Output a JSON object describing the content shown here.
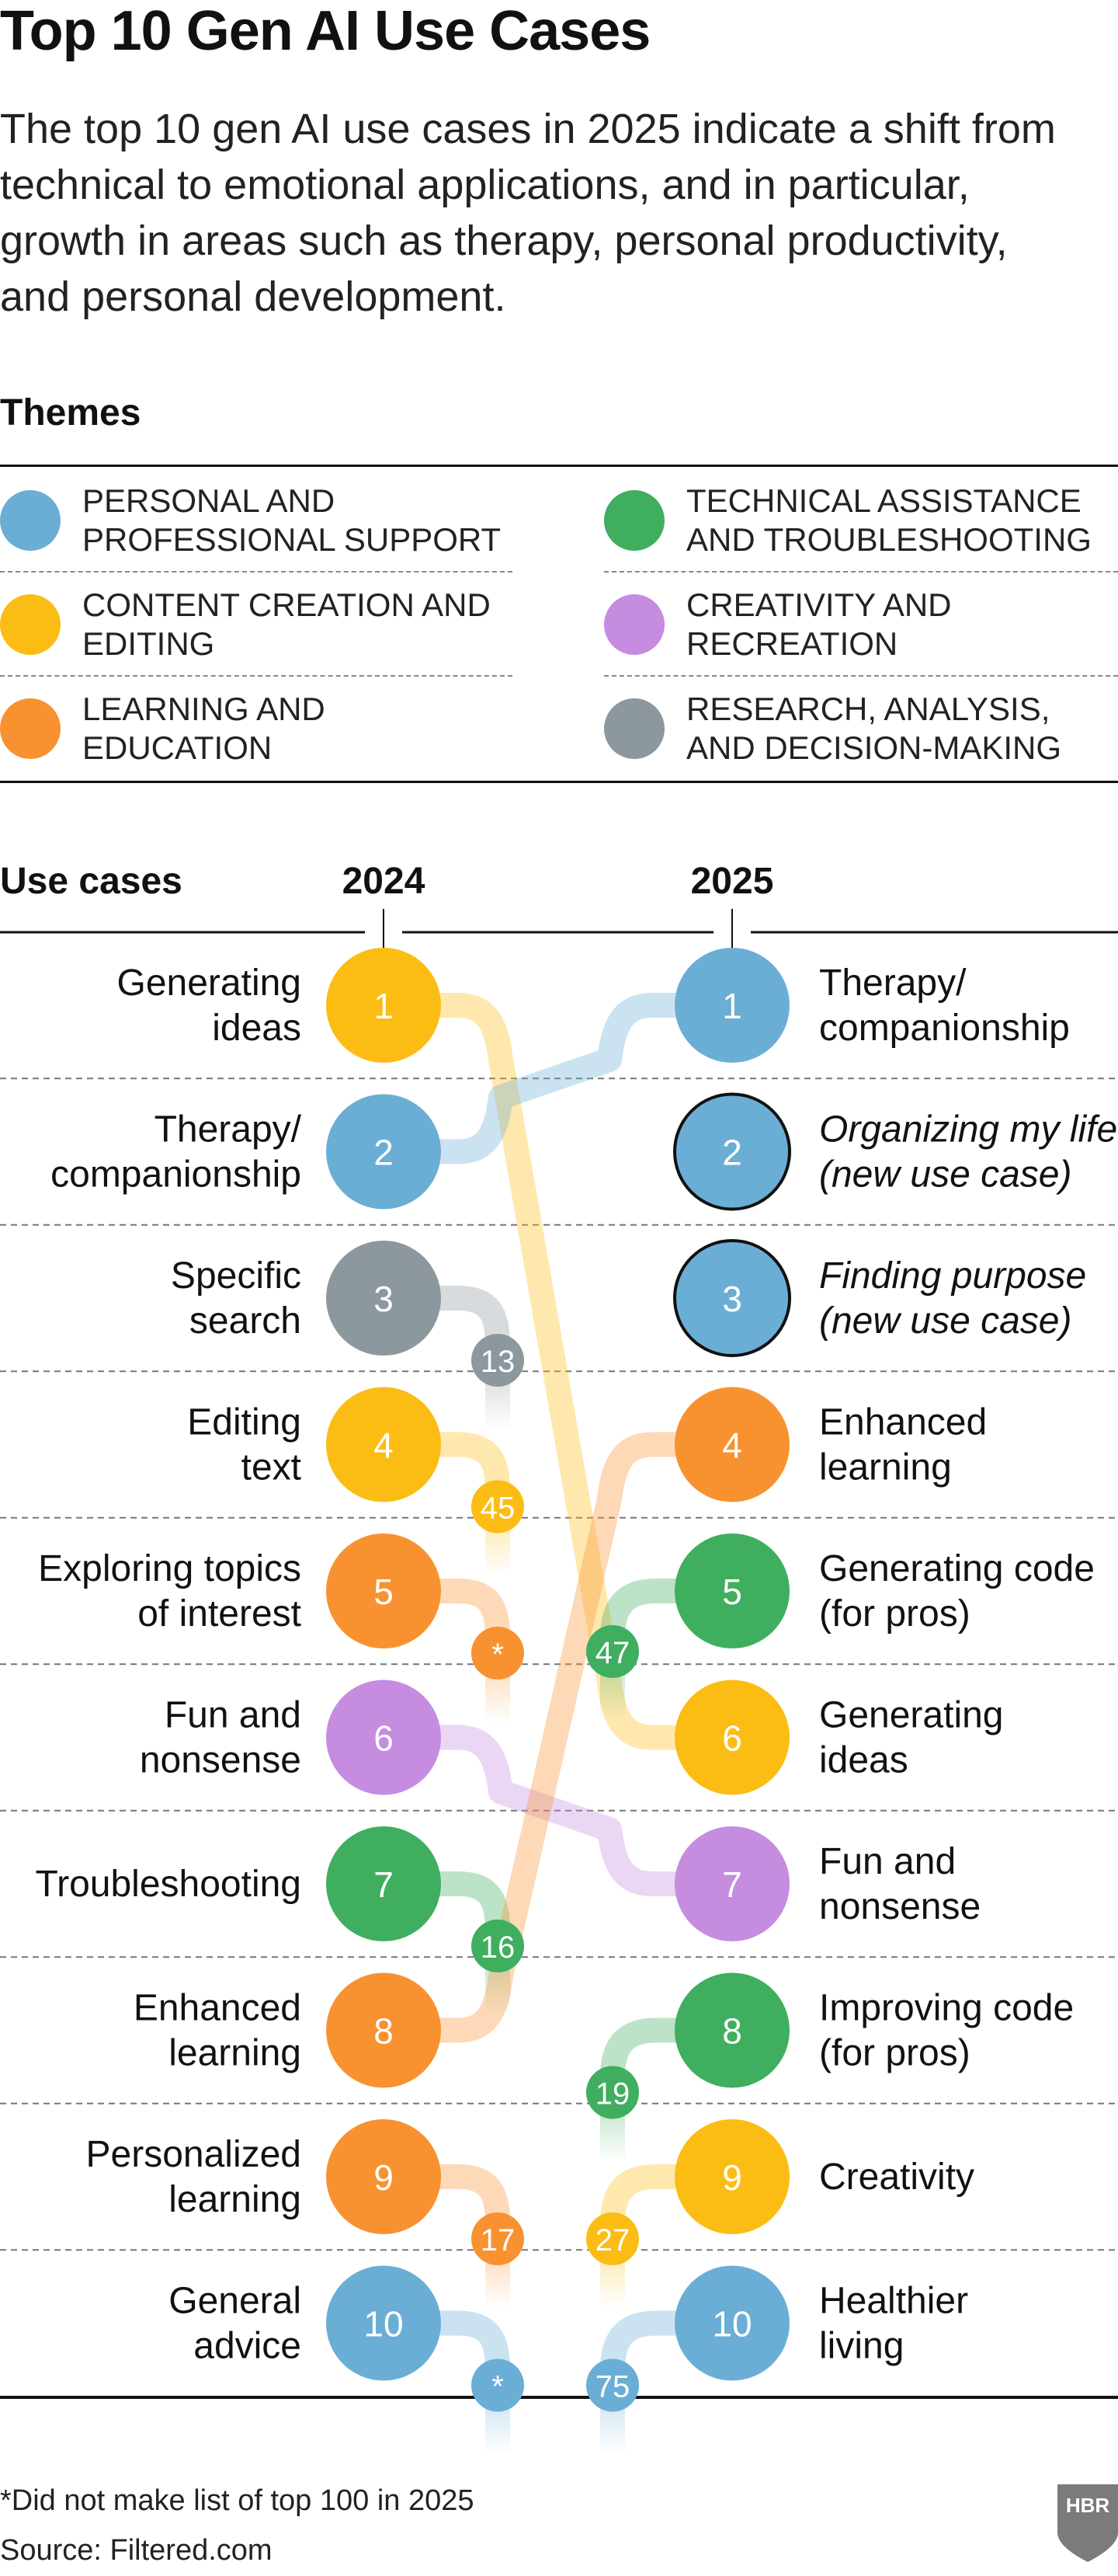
{
  "title": "Top 10 Gen AI Use Cases",
  "subtitle": "The top 10 gen AI use cases in 2025 indicate a shift from technical to emotional applications, and in particular, growth in areas such as therapy, personal productivity, and personal development.",
  "themes_heading": "Themes",
  "themes": [
    {
      "key": "personal",
      "label": "Personal and professional support",
      "color": "#6aaed6"
    },
    {
      "key": "technical",
      "label": "Technical assistance and troubleshooting",
      "color": "#3fae5f"
    },
    {
      "key": "content",
      "label": "Content creation and editing",
      "color": "#fbbd14"
    },
    {
      "key": "creativity",
      "label": "Creativity and recreation",
      "color": "#c58ce0"
    },
    {
      "key": "learning",
      "label": "Learning and education",
      "color": "#f89230"
    },
    {
      "key": "research",
      "label": "Research, analysis, and decision-making",
      "color": "#8c979e"
    }
  ],
  "chart_data": {
    "type": "slope",
    "row_header": "Use cases",
    "year_left": "2024",
    "year_right": "2025",
    "y2024": [
      {
        "rank": "1",
        "lines": [
          "Generating",
          "ideas"
        ],
        "theme": "content",
        "rank_2025": "6"
      },
      {
        "rank": "2",
        "lines": [
          "Therapy/",
          "companionship"
        ],
        "theme": "personal",
        "rank_2025": "1"
      },
      {
        "rank": "3",
        "lines": [
          "Specific",
          "search"
        ],
        "theme": "research",
        "rank_2025": "13"
      },
      {
        "rank": "4",
        "lines": [
          "Editing",
          "text"
        ],
        "theme": "content",
        "rank_2025": "45"
      },
      {
        "rank": "5",
        "lines": [
          "Exploring topics",
          "of interest"
        ],
        "theme": "learning",
        "rank_2025": "*"
      },
      {
        "rank": "6",
        "lines": [
          "Fun and",
          "nonsense"
        ],
        "theme": "creativity",
        "rank_2025": "7"
      },
      {
        "rank": "7",
        "lines": [
          "Troubleshooting"
        ],
        "theme": "technical",
        "rank_2025": "16"
      },
      {
        "rank": "8",
        "lines": [
          "Enhanced",
          "learning"
        ],
        "theme": "learning",
        "rank_2025": "4"
      },
      {
        "rank": "9",
        "lines": [
          "Personalized",
          "learning"
        ],
        "theme": "learning",
        "rank_2025": "17"
      },
      {
        "rank": "10",
        "lines": [
          "General",
          "advice"
        ],
        "theme": "personal",
        "rank_2025": "*"
      }
    ],
    "y2025": [
      {
        "rank": "1",
        "lines": [
          "Therapy/",
          "companionship"
        ],
        "theme": "personal",
        "rank_2024": "2"
      },
      {
        "rank": "2",
        "lines": [
          "Organizing my life",
          "(new use case)"
        ],
        "theme": "personal",
        "new": true
      },
      {
        "rank": "3",
        "lines": [
          "Finding purpose",
          "(new use case)"
        ],
        "theme": "personal",
        "new": true
      },
      {
        "rank": "4",
        "lines": [
          "Enhanced",
          "learning"
        ],
        "theme": "learning",
        "rank_2024": "8"
      },
      {
        "rank": "5",
        "lines": [
          "Generating code",
          "(for pros)"
        ],
        "theme": "technical",
        "rank_2024": "47"
      },
      {
        "rank": "6",
        "lines": [
          "Generating",
          "ideas"
        ],
        "theme": "content",
        "rank_2024": "1"
      },
      {
        "rank": "7",
        "lines": [
          "Fun and",
          "nonsense"
        ],
        "theme": "creativity",
        "rank_2024": "6"
      },
      {
        "rank": "8",
        "lines": [
          "Improving code",
          "(for pros)"
        ],
        "theme": "technical",
        "rank_2024": "19"
      },
      {
        "rank": "9",
        "lines": [
          "Creativity"
        ],
        "theme": "content",
        "rank_2024": "27"
      },
      {
        "rank": "10",
        "lines": [
          "Healthier",
          "living"
        ],
        "theme": "personal",
        "rank_2024": "75"
      }
    ]
  },
  "footnote": "*Did not make list of top 100 in 2025",
  "source": "Source: Filtered.com",
  "logo": "HBR"
}
